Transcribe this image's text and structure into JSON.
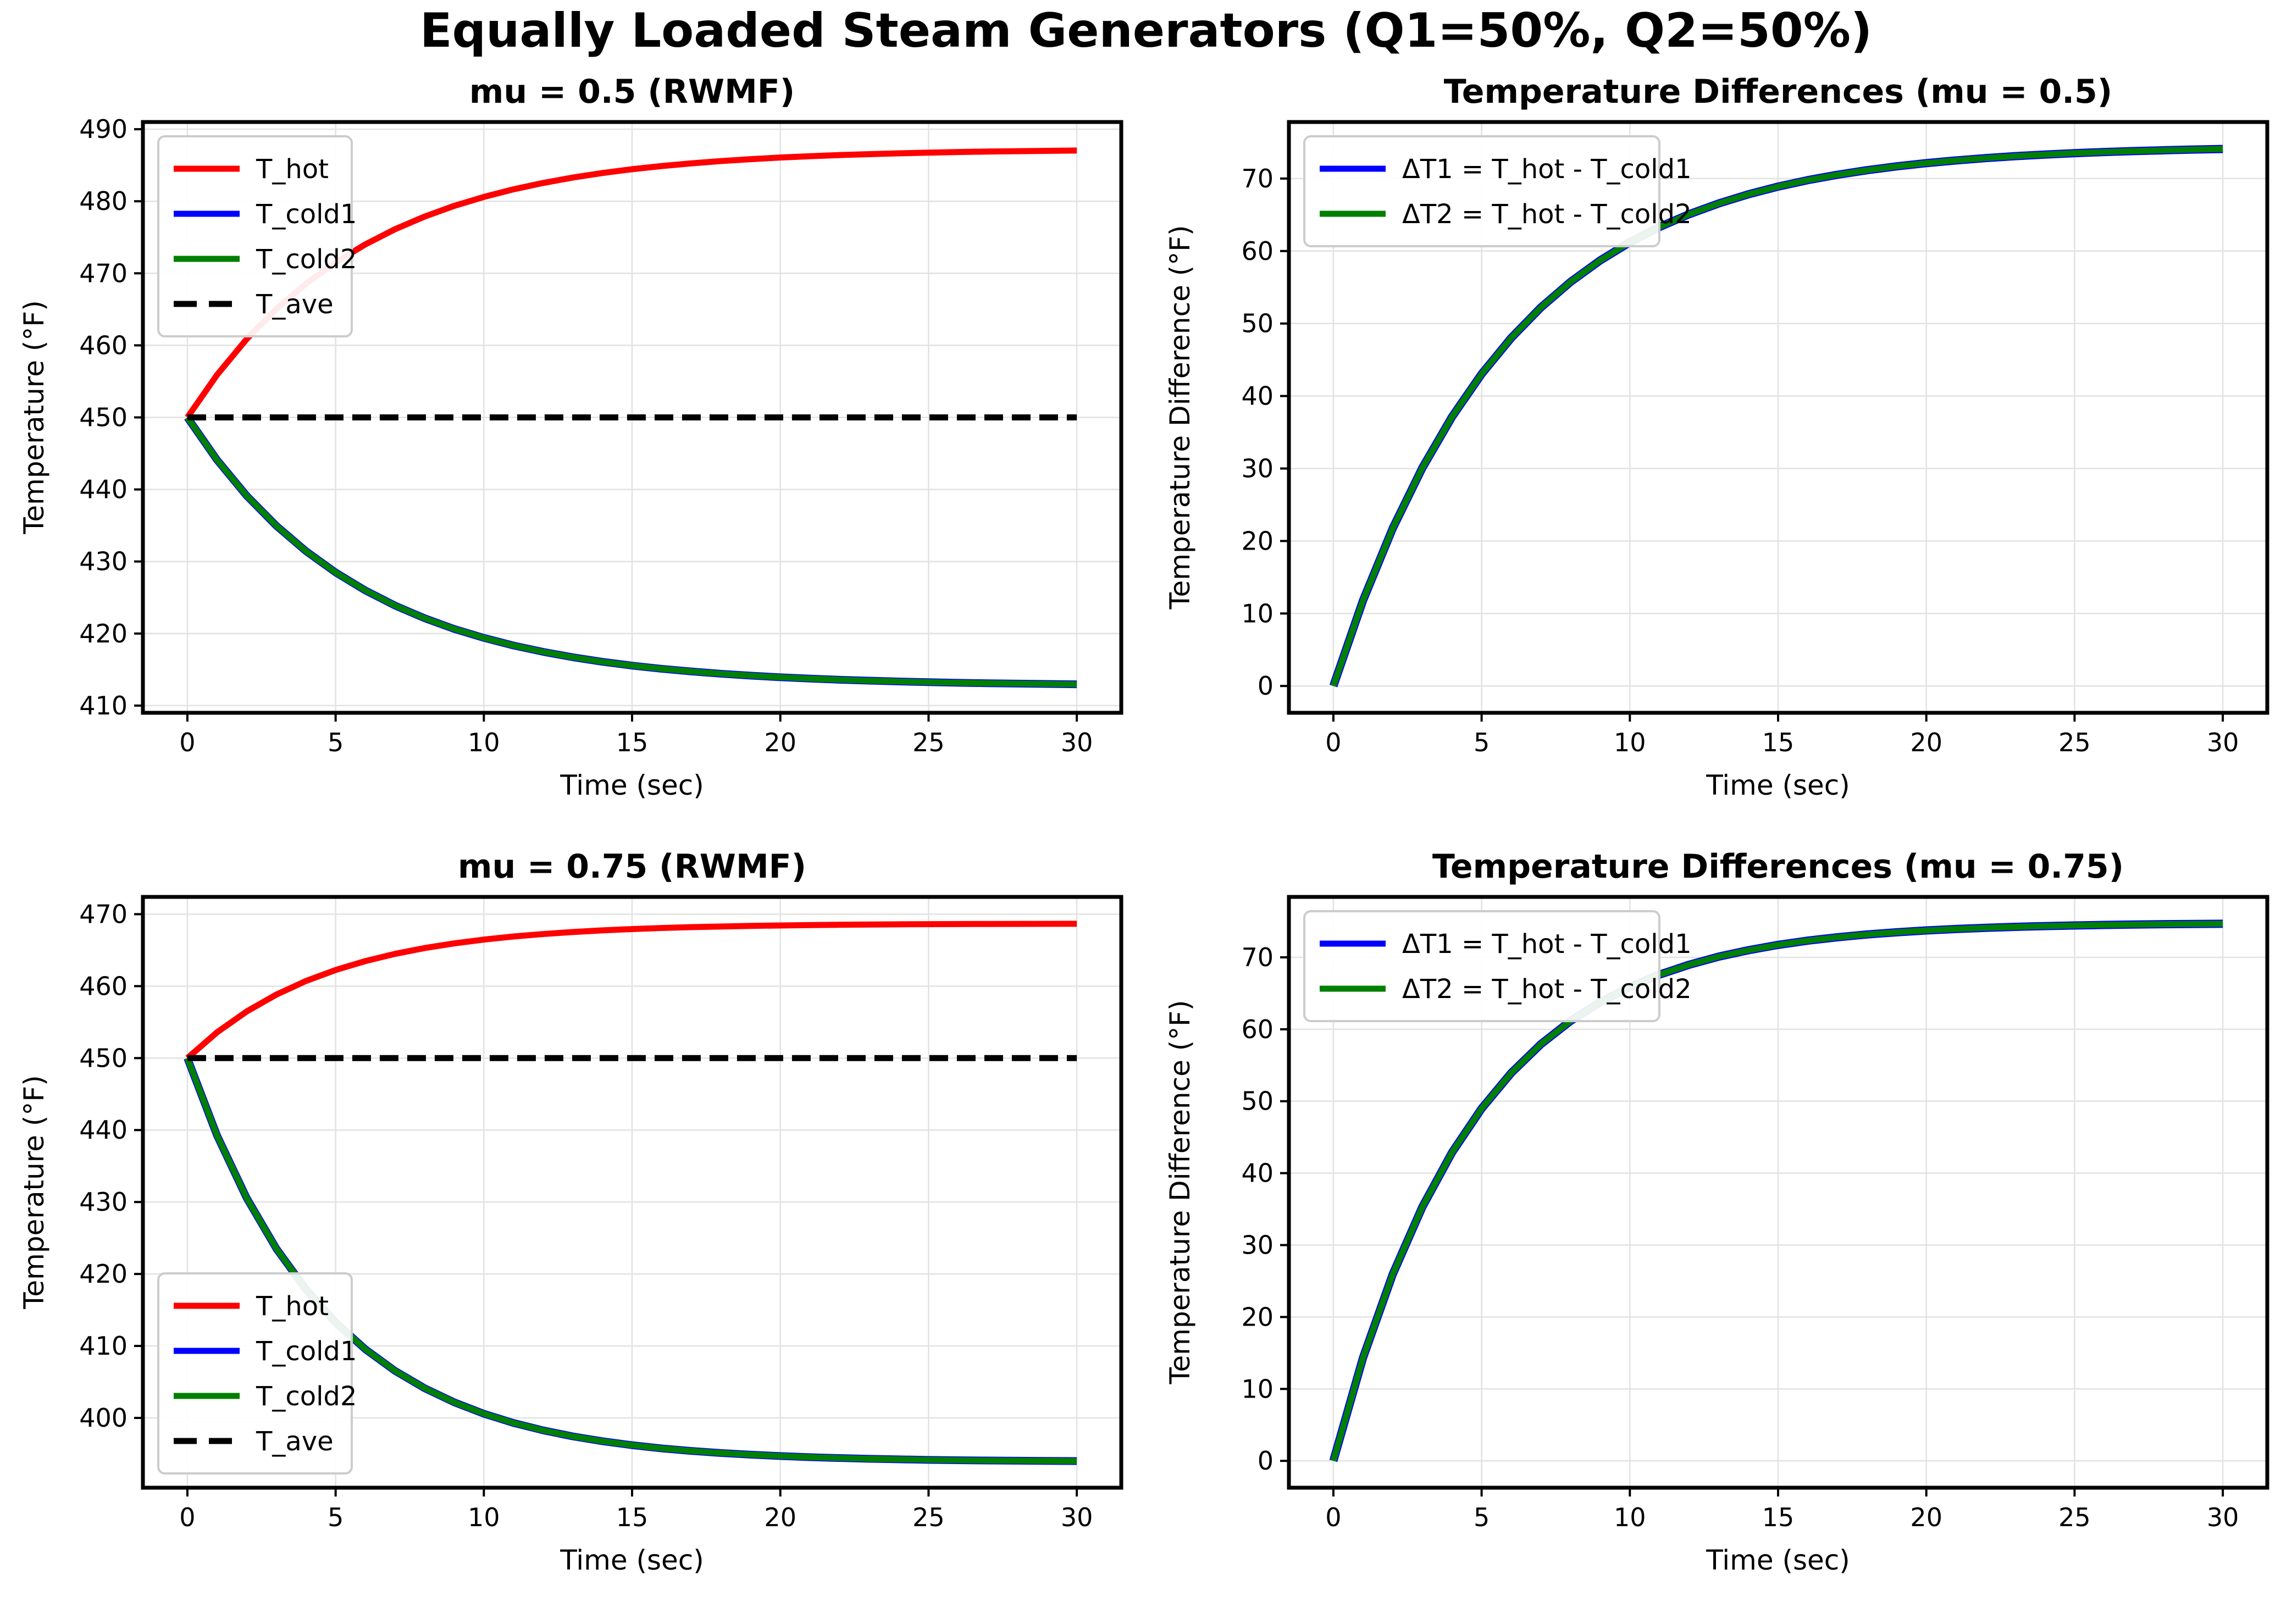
{
  "suptitle": "Equally Loaded Steam Generators (Q1=50%, Q2=50%)",
  "colors": {
    "t_hot": "#ff0000",
    "t_cold1": "#0000ff",
    "t_cold2": "#008000",
    "t_ave": "#000000",
    "grid": "#e2e2e2",
    "spine": "#000000",
    "legend_border": "#cccccc",
    "background": "#ffffff"
  },
  "t": [
    0,
    1,
    2,
    3,
    4,
    5,
    6,
    7,
    8,
    9,
    10,
    11,
    12,
    13,
    14,
    15,
    16,
    17,
    18,
    19,
    20,
    21,
    22,
    23,
    24,
    25,
    26,
    27,
    28,
    29,
    30
  ],
  "chart_data": [
    {
      "type": "line",
      "title": "mu = 0.5 (RWMF)",
      "xlabel": "Time (sec)",
      "ylabel": "Temperature (°F)",
      "xlim": [
        -1.5,
        31.5
      ],
      "ylim": [
        409.0,
        491.0
      ],
      "xticks": [
        0,
        5,
        10,
        15,
        20,
        25,
        30
      ],
      "yticks": [
        410,
        420,
        430,
        440,
        450,
        460,
        470,
        480,
        490
      ],
      "grid": true,
      "legend_loc": "upper-left",
      "series": [
        {
          "name": "T_hot",
          "color": "#ff0000",
          "style": "solid",
          "width": 11,
          "values": [
            450,
            455.9,
            460.87,
            465.04,
            468.56,
            471.52,
            474.01,
            476.11,
            477.87,
            479.36,
            480.6,
            481.66,
            482.54,
            483.29,
            483.92,
            484.45,
            484.89,
            485.26,
            485.58,
            485.84,
            486.07,
            486.25,
            486.41,
            486.54,
            486.65,
            486.75,
            486.83,
            486.9,
            486.95,
            487.0,
            487.04
          ]
        },
        {
          "name": "T_cold1",
          "color": "#0000ff",
          "style": "solid",
          "width": 14,
          "values": [
            450,
            444.1,
            439.13,
            434.96,
            431.44,
            428.48,
            425.99,
            423.89,
            422.13,
            420.64,
            419.4,
            418.34,
            417.46,
            416.71,
            416.08,
            415.55,
            415.11,
            414.74,
            414.42,
            414.16,
            413.93,
            413.75,
            413.59,
            413.46,
            413.35,
            413.25,
            413.17,
            413.1,
            413.05,
            413.0,
            412.96
          ]
        },
        {
          "name": "T_cold2",
          "color": "#008000",
          "style": "solid",
          "width": 11,
          "values": [
            450,
            444.1,
            439.13,
            434.96,
            431.44,
            428.48,
            425.99,
            423.89,
            422.13,
            420.64,
            419.4,
            418.34,
            417.46,
            416.71,
            416.08,
            415.55,
            415.11,
            414.74,
            414.42,
            414.16,
            413.93,
            413.75,
            413.59,
            413.46,
            413.35,
            413.25,
            413.17,
            413.1,
            413.05,
            413.0,
            412.96
          ]
        },
        {
          "name": "T_ave",
          "color": "#000000",
          "style": "dashed",
          "width": 11,
          "values": [
            450,
            450,
            450,
            450,
            450,
            450,
            450,
            450,
            450,
            450,
            450,
            450,
            450,
            450,
            450,
            450,
            450,
            450,
            450,
            450,
            450,
            450,
            450,
            450,
            450,
            450,
            450,
            450,
            450,
            450,
            450
          ]
        }
      ]
    },
    {
      "type": "line",
      "title": "Temperature Differences (mu = 0.5)",
      "xlabel": "Time (sec)",
      "ylabel": "Temperature Difference (°F)",
      "xlim": [
        -1.5,
        31.5
      ],
      "ylim": [
        -3.7,
        77.8
      ],
      "xticks": [
        0,
        5,
        10,
        15,
        20,
        25,
        30
      ],
      "yticks": [
        0,
        10,
        20,
        30,
        40,
        50,
        60,
        70
      ],
      "grid": true,
      "legend_loc": "upper-left",
      "series": [
        {
          "name": "ΔT1 = T_hot - T_cold1",
          "color": "#0000ff",
          "style": "solid",
          "width": 15,
          "values": [
            0,
            11.8,
            21.73,
            30.08,
            37.12,
            43.04,
            48.02,
            52.22,
            55.74,
            58.71,
            61.21,
            63.32,
            65.08,
            66.57,
            67.83,
            68.89,
            69.78,
            70.52,
            71.15,
            71.68,
            72.13,
            72.5,
            72.82,
            73.09,
            73.31,
            73.5,
            73.66,
            73.79,
            73.9,
            74.0,
            74.08
          ]
        },
        {
          "name": "ΔT2 = T_hot - T_cold2",
          "color": "#008000",
          "style": "solid",
          "width": 11,
          "values": [
            0,
            11.8,
            21.73,
            30.08,
            37.12,
            43.04,
            48.02,
            52.22,
            55.74,
            58.71,
            61.21,
            63.32,
            65.08,
            66.57,
            67.83,
            68.89,
            69.78,
            70.52,
            71.15,
            71.68,
            72.13,
            72.5,
            72.82,
            73.09,
            73.31,
            73.5,
            73.66,
            73.79,
            73.9,
            74.0,
            74.08
          ]
        }
      ]
    },
    {
      "type": "line",
      "title": "mu = 0.75 (RWMF)",
      "xlabel": "Time (sec)",
      "ylabel": "Temperature (°F)",
      "xlim": [
        -1.5,
        31.5
      ],
      "ylim": [
        390.3,
        472.4
      ],
      "xticks": [
        0,
        5,
        10,
        15,
        20,
        25,
        30
      ],
      "yticks": [
        400,
        410,
        420,
        430,
        440,
        450,
        460,
        470
      ],
      "grid": true,
      "legend_loc": "lower-left",
      "series": [
        {
          "name": "T_hot",
          "color": "#ff0000",
          "style": "solid",
          "width": 11,
          "values": [
            450,
            453.58,
            456.48,
            458.82,
            460.72,
            462.24,
            463.48,
            464.48,
            465.29,
            465.94,
            466.47,
            466.9,
            467.24,
            467.52,
            467.75,
            467.93,
            468.08,
            468.2,
            468.29,
            468.37,
            468.43,
            468.49,
            468.53,
            468.56,
            468.59,
            468.61,
            468.63,
            468.64,
            468.65,
            468.66,
            468.67
          ]
        },
        {
          "name": "T_cold1",
          "color": "#0000ff",
          "style": "solid",
          "width": 14,
          "values": [
            450,
            439.25,
            430.56,
            423.53,
            417.86,
            413.27,
            409.55,
            406.55,
            404.13,
            402.17,
            400.58,
            399.3,
            398.27,
            397.43,
            396.76,
            396.21,
            395.76,
            395.41,
            395.12,
            394.89,
            394.7,
            394.54,
            394.42,
            394.32,
            394.24,
            394.17,
            394.12,
            394.08,
            394.05,
            394.02,
            394.0
          ]
        },
        {
          "name": "T_cold2",
          "color": "#008000",
          "style": "solid",
          "width": 11,
          "values": [
            450,
            439.25,
            430.56,
            423.53,
            417.86,
            413.27,
            409.55,
            406.55,
            404.13,
            402.17,
            400.58,
            399.3,
            398.27,
            397.43,
            396.76,
            396.21,
            395.76,
            395.41,
            395.12,
            394.89,
            394.7,
            394.54,
            394.42,
            394.32,
            394.24,
            394.17,
            394.12,
            394.08,
            394.05,
            394.02,
            394.0
          ]
        },
        {
          "name": "T_ave",
          "color": "#000000",
          "style": "dashed",
          "width": 11,
          "values": [
            450,
            450,
            450,
            450,
            450,
            450,
            450,
            450,
            450,
            450,
            450,
            450,
            450,
            450,
            450,
            450,
            450,
            450,
            450,
            450,
            450,
            450,
            450,
            450,
            450,
            450,
            450,
            450,
            450,
            450,
            450
          ]
        }
      ]
    },
    {
      "type": "line",
      "title": "Temperature Differences (mu = 0.75)",
      "xlabel": "Time (sec)",
      "ylabel": "Temperature Difference (°F)",
      "xlim": [
        -1.5,
        31.5
      ],
      "ylim": [
        -3.73,
        78.4
      ],
      "xticks": [
        0,
        5,
        10,
        15,
        20,
        25,
        30
      ],
      "yticks": [
        0,
        10,
        20,
        30,
        40,
        50,
        60,
        70
      ],
      "grid": true,
      "legend_loc": "upper-left",
      "series": [
        {
          "name": "ΔT1 = T_hot - T_cold1",
          "color": "#0000ff",
          "style": "solid",
          "width": 15,
          "values": [
            0,
            14.34,
            25.92,
            35.29,
            42.86,
            48.98,
            53.93,
            57.93,
            61.16,
            63.77,
            65.89,
            67.6,
            68.97,
            70.1,
            70.99,
            71.73,
            72.32,
            72.79,
            73.18,
            73.48,
            73.74,
            73.94,
            74.1,
            74.24,
            74.34,
            74.43,
            74.5,
            74.56,
            74.61,
            74.64,
            74.67
          ]
        },
        {
          "name": "ΔT2 = T_hot - T_cold2",
          "color": "#008000",
          "style": "solid",
          "width": 11,
          "values": [
            0,
            14.34,
            25.92,
            35.29,
            42.86,
            48.98,
            53.93,
            57.93,
            61.16,
            63.77,
            65.89,
            67.6,
            68.97,
            70.1,
            70.99,
            71.73,
            72.32,
            72.79,
            73.18,
            73.48,
            73.74,
            73.94,
            74.1,
            74.24,
            74.34,
            74.43,
            74.5,
            74.56,
            74.61,
            74.64,
            74.67
          ]
        }
      ]
    }
  ]
}
